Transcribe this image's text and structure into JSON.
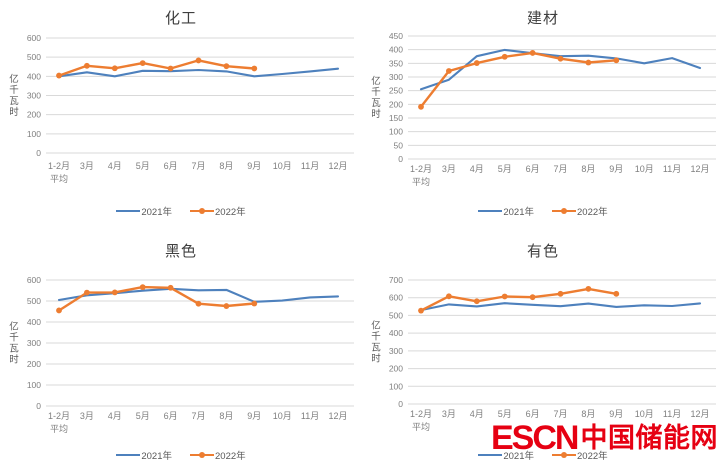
{
  "page": {
    "background": "#ffffff"
  },
  "colors": {
    "series_2021": "#4E81BD",
    "series_2022": "#ED7D31",
    "gridline": "#D9D9D9",
    "tick_text": "#7f7f7f",
    "axis_label_text": "#595959",
    "title_text": "#3f3f3f",
    "logo_red": "#E60012"
  },
  "logo": {
    "escn": "ESCN",
    "chinese": "中国储能网"
  },
  "chart_data": [
    {
      "type": "line",
      "title": "化工",
      "ylabel": "亿千瓦时",
      "ylim": [
        0,
        600
      ],
      "yticks": [
        600,
        500,
        400,
        300,
        200,
        100,
        0
      ],
      "grid": true,
      "legend_position": "bottom",
      "categories": [
        "1-2月 平均",
        "3月",
        "4月",
        "5月",
        "6月",
        "7月",
        "8月",
        "9月",
        "10月",
        "11月",
        "12月"
      ],
      "series": [
        {
          "name": "2021年",
          "color": "#4E81BD",
          "marker": false,
          "values": [
            400,
            421,
            400,
            429,
            427,
            433,
            426,
            400,
            412,
            426,
            440
          ]
        },
        {
          "name": "2022年",
          "color": "#ED7D31",
          "marker": true,
          "values": [
            404,
            455,
            442,
            469,
            441,
            483,
            453,
            441,
            null,
            null,
            null
          ]
        }
      ]
    },
    {
      "type": "line",
      "title": "建材",
      "ylabel": "亿千瓦时",
      "ylim": [
        0,
        450
      ],
      "yticks": [
        450,
        400,
        350,
        300,
        250,
        200,
        150,
        100,
        50,
        0
      ],
      "grid": true,
      "legend_position": "bottom",
      "categories": [
        "1-2月 平均",
        "3月",
        "4月",
        "5月",
        "6月",
        "7月",
        "8月",
        "9月",
        "10月",
        "11月",
        "12月"
      ],
      "series": [
        {
          "name": "2021年",
          "color": "#4E81BD",
          "marker": false,
          "values": [
            255,
            290,
            376,
            399,
            387,
            376,
            378,
            368,
            350,
            369,
            333
          ]
        },
        {
          "name": "2022年",
          "color": "#ED7D31",
          "marker": true,
          "values": [
            191,
            322,
            351,
            374,
            388,
            367,
            353,
            361,
            null,
            null,
            null
          ]
        }
      ]
    },
    {
      "type": "line",
      "title": "黑色",
      "ylabel": "亿千瓦时",
      "ylim": [
        0,
        600
      ],
      "yticks": [
        600,
        500,
        400,
        300,
        200,
        100,
        0
      ],
      "grid": true,
      "legend_position": "bottom",
      "categories": [
        "1-2月 平均",
        "3月",
        "4月",
        "5月",
        "6月",
        "7月",
        "8月",
        "9月",
        "10月",
        "11月",
        "12月"
      ],
      "series": [
        {
          "name": "2021年",
          "color": "#4E81BD",
          "marker": false,
          "values": [
            505,
            527,
            537,
            549,
            558,
            551,
            553,
            496,
            502,
            517,
            522
          ]
        },
        {
          "name": "2022年",
          "color": "#ED7D31",
          "marker": true,
          "values": [
            455,
            540,
            541,
            566,
            563,
            487,
            476,
            488,
            null,
            null,
            null
          ]
        }
      ]
    },
    {
      "type": "line",
      "title": "有色",
      "ylabel": "亿千瓦时",
      "ylim": [
        0,
        700
      ],
      "yticks": [
        700,
        600,
        500,
        400,
        300,
        200,
        100,
        0
      ],
      "grid": true,
      "legend_position": "bottom",
      "categories": [
        "1-2月 平均",
        "3月",
        "4月",
        "5月",
        "6月",
        "7月",
        "8月",
        "9月",
        "10月",
        "11月",
        "12月"
      ],
      "series": [
        {
          "name": "2021年",
          "color": "#4E81BD",
          "marker": false,
          "values": [
            530,
            562,
            551,
            569,
            560,
            552,
            567,
            548,
            557,
            553,
            568
          ]
        },
        {
          "name": "2022年",
          "color": "#ED7D31",
          "marker": true,
          "values": [
            527,
            608,
            580,
            607,
            603,
            622,
            650,
            622,
            null,
            null,
            null
          ]
        }
      ]
    }
  ]
}
